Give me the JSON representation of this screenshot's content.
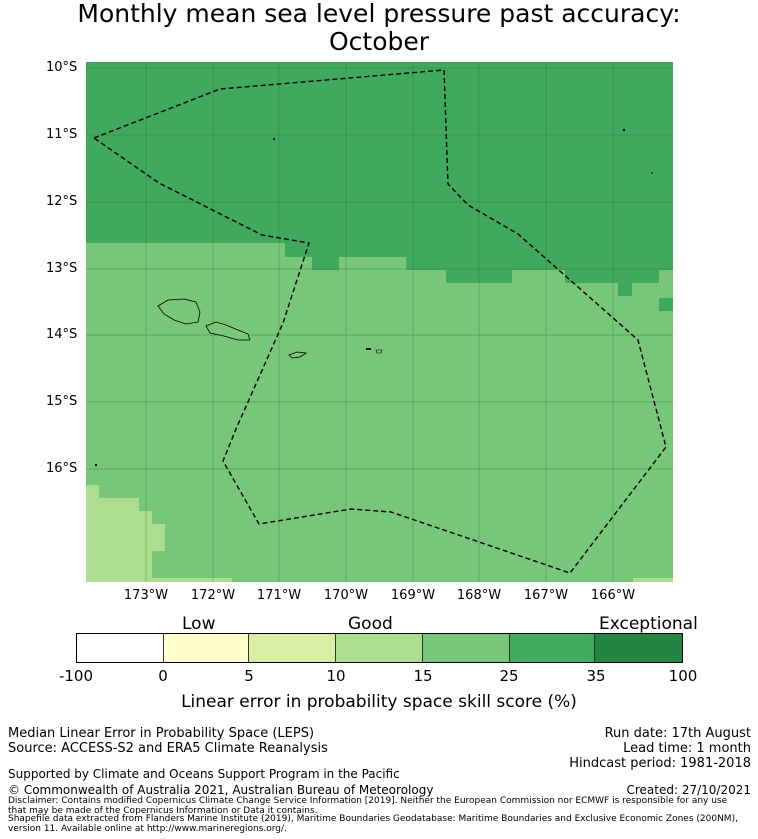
{
  "title_line1": "Monthly mean sea level pressure past accuracy:",
  "title_line2": "October",
  "map": {
    "lat_labels": [
      "10°S",
      "11°S",
      "12°S",
      "13°S",
      "14°S",
      "15°S",
      "16°S"
    ],
    "lon_labels": [
      "173°W",
      "172°W",
      "171°W",
      "170°W",
      "169°W",
      "168°W",
      "167°W",
      "166°W"
    ],
    "colors": {
      "exceptional": "#41a95e",
      "good_high": "#78c679",
      "good_low": "#addd8e",
      "boundary": "#000000"
    }
  },
  "colorbar": {
    "categories": [
      "Low",
      "Good",
      "Exceptional"
    ],
    "ticks": [
      "-100",
      "0",
      "5",
      "10",
      "15",
      "25",
      "35",
      "100"
    ],
    "colors": [
      "#ffffff",
      "#ffffcc",
      "#d9f0a3",
      "#addd8e",
      "#78c679",
      "#41ab5d",
      "#238443"
    ],
    "label": "Linear error in probability space skill score (%)"
  },
  "footer": {
    "left1": "Median Linear Error in Probability Space (LEPS)",
    "left2": "Source: ACCESS-S2 and ERA5 Climate Reanalysis",
    "right1": "Run date: 17th August",
    "right2": "Lead time: 1 month",
    "right3": "Hindcast period: 1981-2018",
    "support": "Supported by Climate and Oceans Support Program in the Pacific",
    "copyright": "© Commonwealth of Australia 2021, Australian Bureau of Meteorology",
    "created": "Created: 27/10/2021",
    "disclaimer1": "Disclaimer: Contains modified Copernicus Climate Change Service Information [2019]. Neither the European Commission nor ECMWF is responsible for any use",
    "disclaimer2": "that may be made of the Copernicus Information or Data it contains.",
    "shapefile1": "Shapefile data extracted from Flanders Marine Institute (2019), Maritime Boundaries Geodatabase: Maritime Boundaries and Exclusive Economic Zones (200NM),",
    "shapefile2": "version 11. Available online at http://www.marineregions.org/."
  }
}
